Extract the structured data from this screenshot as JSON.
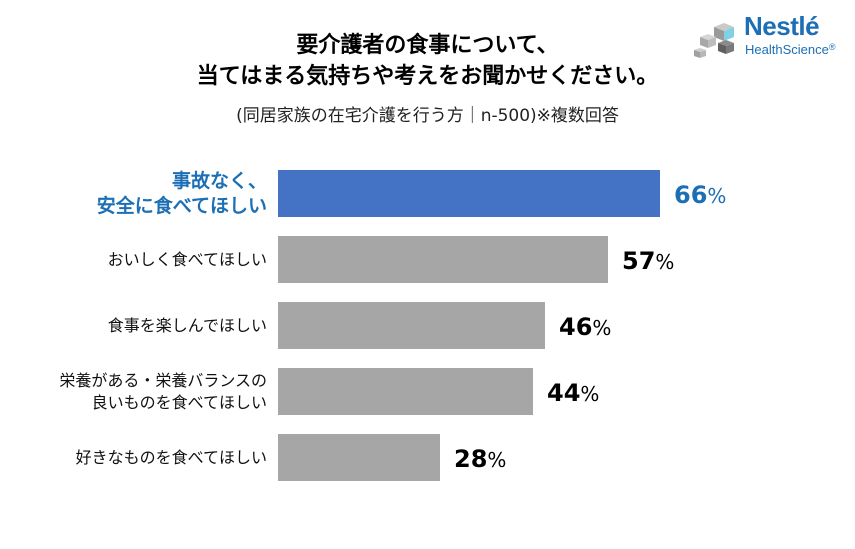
{
  "header": {
    "title_line1": "要介護者の食事について、",
    "title_line2": "当てはまる気持ちや考えをお聞かせください。",
    "subtitle": "(同居家族の在宅介護を行う方｜n-500)※複数回答"
  },
  "logo": {
    "brand": "Nestlé",
    "sub": "HealthScience",
    "reg": "®"
  },
  "colors": {
    "highlight": "#4472c4",
    "bar": "#a6a6a6",
    "highlight_text": "#1c6fb5"
  },
  "chart_data": {
    "type": "bar",
    "orientation": "horizontal",
    "title": "要介護者の食事について、当てはまる気持ちや考えをお聞かせください。",
    "xlim": [
      0,
      100
    ],
    "unit": "%",
    "categories": [
      [
        "事故なく、",
        "安全に食べてほしい"
      ],
      [
        "おいしく食べてほしい"
      ],
      [
        "食事を楽しんでほしい"
      ],
      [
        "栄養がある・栄養バランスの",
        "良いものを食べてほしい"
      ],
      [
        "好きなものを食べてほしい"
      ]
    ],
    "values": [
      66,
      57,
      46,
      44,
      28
    ],
    "highlight_index": 0
  }
}
